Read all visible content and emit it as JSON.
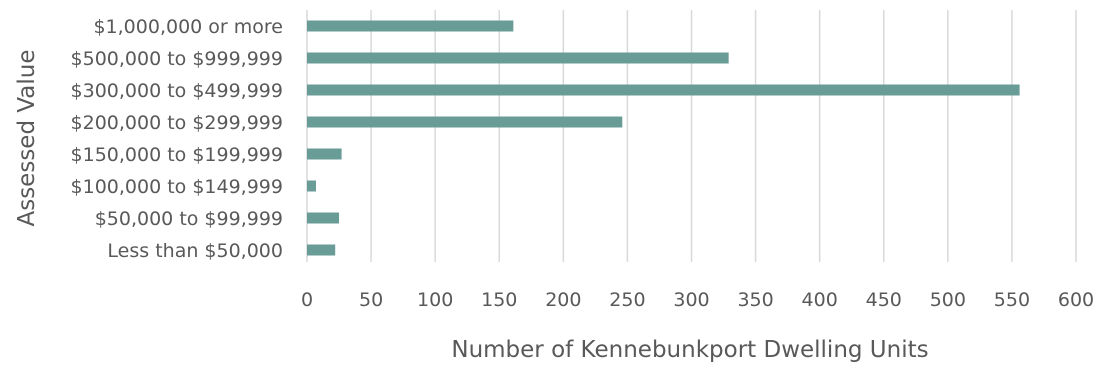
{
  "chart_data": {
    "type": "bar",
    "orientation": "horizontal",
    "categories": [
      "$1,000,000 or more",
      "$500,000 to $999,999",
      "$300,000 to $499,999",
      "$200,000 to $299,999",
      "$150,000 to $199,999",
      "$100,000 to $149,999",
      "$50,000 to $99,999",
      "Less than $50,000"
    ],
    "values": [
      161,
      329,
      556,
      246,
      27,
      7,
      25,
      22
    ],
    "title": "",
    "xlabel": "Number of Kennebunkport Dwelling Units",
    "ylabel": "Assessed Value",
    "xlim": [
      0,
      600
    ],
    "xticks": [
      0,
      50,
      100,
      150,
      200,
      250,
      300,
      350,
      400,
      450,
      500,
      550,
      600
    ],
    "grid": "vertical",
    "legend": "none",
    "bar_color": "#6a9c97",
    "grid_color": "#d9d9d9",
    "text_color": "#595959"
  }
}
